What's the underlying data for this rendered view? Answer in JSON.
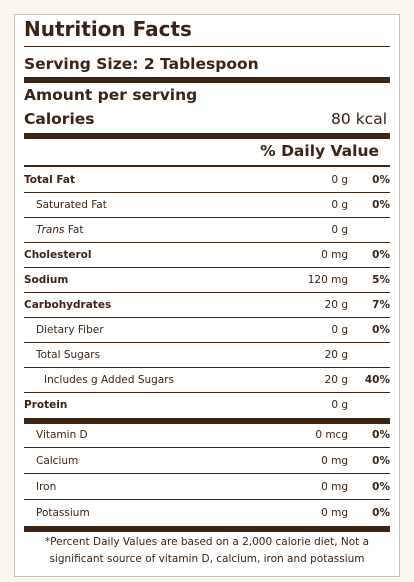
{
  "label": {
    "title": "Nutrition Facts",
    "serving_size": "Serving Size: 2 Tablespoon",
    "amount_per_serving": "Amount per serving",
    "calories_label": "Calories",
    "calories_value": "80 kcal",
    "daily_value_header": "% Daily Value",
    "rows": [
      {
        "name": "Total Fat",
        "amount": "0 g",
        "percent": "0%"
      },
      {
        "name": "Saturated Fat",
        "amount": "0 g",
        "percent": "0%"
      },
      {
        "name_italic": "Trans",
        "name": " Fat",
        "amount": "0 g",
        "percent": ""
      },
      {
        "name": "Cholesterol",
        "amount": "0 mg",
        "percent": "0%"
      },
      {
        "name": "Sodium",
        "amount": "120 mg",
        "percent": "5%"
      },
      {
        "name": "Carbohydrates",
        "amount": "20 g",
        "percent": "7%"
      },
      {
        "name": "Dietary Fiber",
        "amount": "0 g",
        "percent": "0%"
      },
      {
        "name": "Total Sugars",
        "amount": "20 g",
        "percent": ""
      },
      {
        "name": "Includes g Added Sugars",
        "amount": "20 g",
        "percent": "40%"
      },
      {
        "name": "Protein",
        "amount": "0 g",
        "percent": ""
      },
      {
        "name": "Vitamin D",
        "amount": "0 mcg",
        "percent": "0%"
      },
      {
        "name": "Calcium",
        "amount": "0 mg",
        "percent": "0%"
      },
      {
        "name": "Iron",
        "amount": "0 mg",
        "percent": "0%"
      },
      {
        "name": "Potassium",
        "amount": "0 mg",
        "percent": "0%"
      }
    ],
    "footnote": "*Percent Daily Values are based on a 2,000 calorie diet, Not a significant source of vitamin D, calcium, iron and potassium"
  }
}
